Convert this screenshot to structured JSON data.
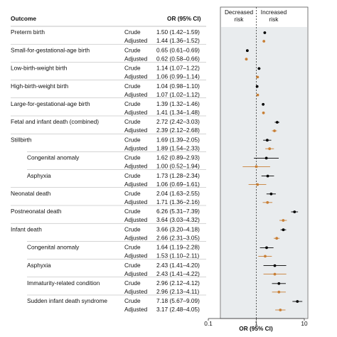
{
  "chart_data": {
    "type": "forest",
    "outcome_header": "Outcome",
    "ci_header": "OR (95% CI)",
    "x_label": "OR (95% CI)",
    "annotations": [
      "Decreased risk",
      "Increased risk"
    ],
    "log_x": true,
    "reference_line": 1,
    "xlim": [
      0.1,
      10
    ],
    "xticks": [
      0.1,
      1,
      10
    ],
    "categories": [
      "Preterm birth",
      "Small-for-gestational-age birth",
      "Low-birth-weight birth",
      "High-birth-weight birth",
      "Large-for-gestational-age birth",
      "Fetal and infant death (combined)",
      "Stillbirth",
      "Congenital anomaly",
      "Asphyxia",
      "Neonatal death",
      "Postneonatal death",
      "Infant death",
      "Congenital anomaly",
      "Asphyxia",
      "Immaturity-related condition",
      "Sudden infant death syndrome"
    ],
    "indented": [
      false,
      false,
      false,
      false,
      false,
      false,
      false,
      true,
      true,
      false,
      false,
      false,
      true,
      true,
      true,
      true
    ],
    "series": [
      {
        "name": "Crude",
        "color": "#000000",
        "values": [
          1.5,
          0.65,
          1.14,
          1.04,
          1.39,
          2.72,
          1.69,
          1.62,
          1.73,
          2.04,
          6.26,
          3.66,
          1.64,
          2.43,
          2.96,
          7.18
        ],
        "lower": [
          1.42,
          0.61,
          1.07,
          0.98,
          1.32,
          2.42,
          1.39,
          0.89,
          1.28,
          1.63,
          5.31,
          3.2,
          1.19,
          1.41,
          2.12,
          5.67
        ],
        "upper": [
          1.59,
          0.69,
          1.22,
          1.1,
          1.46,
          3.03,
          2.05,
          2.93,
          2.34,
          2.55,
          7.39,
          4.18,
          2.28,
          4.2,
          4.12,
          9.09
        ],
        "value_labels": [
          "1.50 (1.42–1.59)",
          "0.65 (0.61–0.69)",
          "1.14 (1.07–1.22)",
          "1.04 (0.98–1.10)",
          "1.39 (1.32–1.46)",
          "2.72 (2.42–3.03)",
          "1.69 (1.39–2.05)",
          "1.62 (0.89–2.93)",
          "1.73 (1.28–2.34)",
          "2.04 (1.63–2.55)",
          "6.26 (5.31–7.39)",
          "3.66 (3.20–4.18)",
          "1.64 (1.19–2.28)",
          "2.43 (1.41–4.20)",
          "2.96 (2.12–4.12)",
          "7.18 (5.67–9.09)"
        ]
      },
      {
        "name": "Adjusted",
        "color": "#c87f35",
        "values": [
          1.44,
          0.62,
          1.06,
          1.07,
          1.41,
          2.39,
          1.89,
          1.0,
          1.06,
          1.71,
          3.64,
          2.66,
          1.53,
          2.43,
          2.96,
          3.17
        ],
        "lower": [
          1.36,
          0.58,
          0.99,
          1.02,
          1.34,
          2.12,
          1.54,
          0.52,
          0.69,
          1.36,
          3.03,
          2.31,
          1.1,
          1.41,
          2.13,
          2.48
        ],
        "upper": [
          1.52,
          0.66,
          1.14,
          1.12,
          1.48,
          2.68,
          2.33,
          1.94,
          1.61,
          2.16,
          4.32,
          3.05,
          2.11,
          4.22,
          4.11,
          4.05
        ],
        "value_labels": [
          "1.44 (1.36–1.52)",
          "0.62 (0.58–0.66)",
          "1.06 (0.99–1.14)",
          "1.07 (1.02–1.12)",
          "1.41 (1.34–1.48)",
          "2.39 (2.12–2.68)",
          "1.89 (1.54–2.33)",
          "1.00 (0.52–1.94)",
          "1.06 (0.69–1.61)",
          "1.71 (1.36–2.16)",
          "3.64 (3.03–4.32)",
          "2.66 (2.31–3.05)",
          "1.53 (1.10–2.11)",
          "2.43 (1.41–4.22)",
          "2.96 (2.13–4.11)",
          "3.17 (2.48–4.05)"
        ]
      }
    ]
  }
}
